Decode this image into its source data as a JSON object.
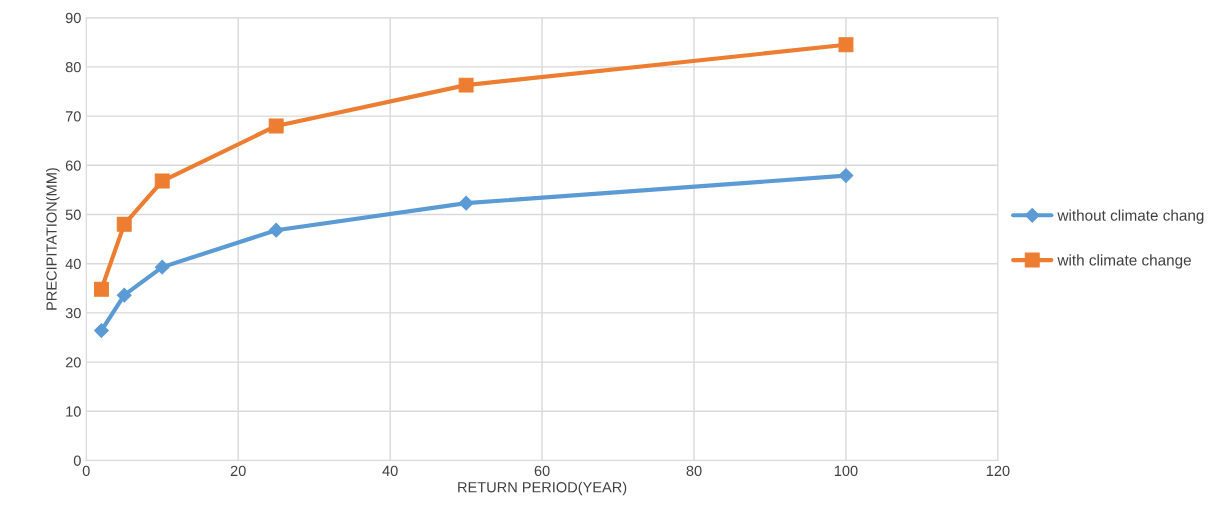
{
  "chart_data": {
    "type": "line",
    "xlabel": "RETURN PERIOD(YEAR)",
    "ylabel": "PRECIPITATION(MM)",
    "x": [
      2,
      5,
      10,
      25,
      50,
      100
    ],
    "series": [
      {
        "name": "without climate chang",
        "color": "#5b9bd5",
        "marker": "diamond",
        "values": [
          26.4,
          33.6,
          39.3,
          46.8,
          52.3,
          57.9
        ]
      },
      {
        "name": "with climate change",
        "color": "#ed7d31",
        "marker": "square",
        "values": [
          34.8,
          48.0,
          56.8,
          68.0,
          76.3,
          84.5
        ]
      }
    ],
    "xlim": [
      0,
      120
    ],
    "xticks": [
      0,
      20,
      40,
      60,
      80,
      100,
      120
    ],
    "ylim": [
      0,
      90
    ],
    "yticks": [
      0,
      10,
      20,
      30,
      40,
      50,
      60,
      70,
      80,
      90
    ],
    "grid": true,
    "legend": "right",
    "line_style": "solid"
  }
}
